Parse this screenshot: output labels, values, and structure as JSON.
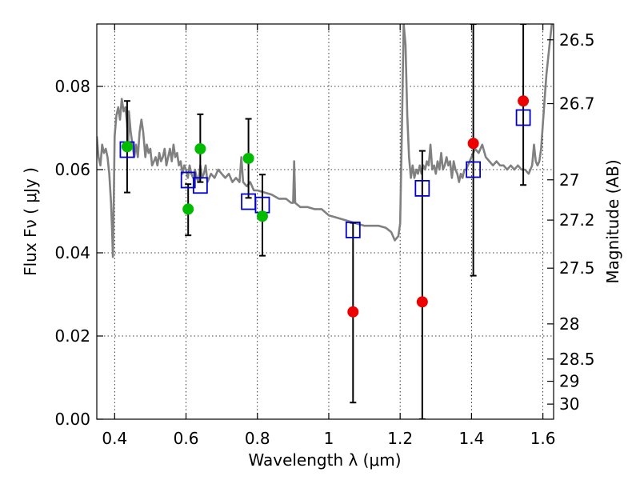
{
  "chart_data": {
    "type": "scatter",
    "xlabel": "Wavelength  λ (μm)",
    "ylabel": "Flux  Fν  ( μJy )",
    "ylabel_right": "Magnitude (AB)",
    "xlim": [
      0.35,
      1.63
    ],
    "ylim": [
      0.0,
      0.095
    ],
    "grid": true,
    "x_ticks": [
      {
        "value": 0.4,
        "label": "0.4"
      },
      {
        "value": 0.6,
        "label": "0.6"
      },
      {
        "value": 0.8,
        "label": "0.8"
      },
      {
        "value": 1.0,
        "label": "1"
      },
      {
        "value": 1.2,
        "label": "1.2"
      },
      {
        "value": 1.4,
        "label": "1.4"
      },
      {
        "value": 1.6,
        "label": "1.6"
      }
    ],
    "y_ticks": [
      {
        "value": 0.0,
        "label": "0.00"
      },
      {
        "value": 0.02,
        "label": "0.02"
      },
      {
        "value": 0.04,
        "label": "0.04"
      },
      {
        "value": 0.06,
        "label": "0.06"
      },
      {
        "value": 0.08,
        "label": "0.08"
      }
    ],
    "mag_ticks": [
      {
        "mag": 26.5,
        "label": "26.5"
      },
      {
        "mag": 26.7,
        "label": "26.7"
      },
      {
        "mag": 27.0,
        "label": "27"
      },
      {
        "mag": 27.2,
        "label": "27.2"
      },
      {
        "mag": 27.5,
        "label": "27.5"
      },
      {
        "mag": 28.0,
        "label": "28"
      },
      {
        "mag": 28.5,
        "label": "28.5"
      },
      {
        "mag": 29.0,
        "label": "29"
      },
      {
        "mag": 30.0,
        "label": "30"
      }
    ],
    "series": [
      {
        "kind": "model-spectrum",
        "color": "#808080",
        "points": [
          [
            0.35,
            0.068
          ],
          [
            0.355,
            0.063
          ],
          [
            0.36,
            0.061
          ],
          [
            0.365,
            0.066
          ],
          [
            0.37,
            0.064
          ],
          [
            0.375,
            0.065
          ],
          [
            0.38,
            0.063
          ],
          [
            0.385,
            0.059
          ],
          [
            0.39,
            0.052
          ],
          [
            0.393,
            0.045
          ],
          [
            0.395,
            0.039
          ],
          [
            0.398,
            0.055
          ],
          [
            0.4,
            0.068
          ],
          [
            0.405,
            0.073
          ],
          [
            0.41,
            0.075
          ],
          [
            0.415,
            0.072
          ],
          [
            0.42,
            0.077
          ],
          [
            0.425,
            0.074
          ],
          [
            0.43,
            0.075
          ],
          [
            0.435,
            0.071
          ],
          [
            0.438,
            0.066
          ],
          [
            0.44,
            0.074
          ],
          [
            0.445,
            0.069
          ],
          [
            0.45,
            0.066
          ],
          [
            0.455,
            0.063
          ],
          [
            0.46,
            0.066
          ],
          [
            0.465,
            0.063
          ],
          [
            0.47,
            0.069
          ],
          [
            0.475,
            0.072
          ],
          [
            0.48,
            0.069
          ],
          [
            0.486,
            0.063
          ],
          [
            0.49,
            0.066
          ],
          [
            0.495,
            0.064
          ],
          [
            0.5,
            0.065
          ],
          [
            0.505,
            0.061
          ],
          [
            0.51,
            0.062
          ],
          [
            0.515,
            0.063
          ],
          [
            0.52,
            0.061
          ],
          [
            0.525,
            0.064
          ],
          [
            0.53,
            0.062
          ],
          [
            0.535,
            0.063
          ],
          [
            0.54,
            0.065
          ],
          [
            0.545,
            0.061
          ],
          [
            0.55,
            0.063
          ],
          [
            0.555,
            0.065
          ],
          [
            0.56,
            0.062
          ],
          [
            0.565,
            0.066
          ],
          [
            0.57,
            0.063
          ],
          [
            0.575,
            0.064
          ],
          [
            0.58,
            0.061
          ],
          [
            0.585,
            0.062
          ],
          [
            0.59,
            0.059
          ],
          [
            0.595,
            0.061
          ],
          [
            0.6,
            0.06
          ],
          [
            0.605,
            0.058
          ],
          [
            0.61,
            0.061
          ],
          [
            0.615,
            0.059
          ],
          [
            0.62,
            0.058
          ],
          [
            0.625,
            0.06
          ],
          [
            0.63,
            0.058
          ],
          [
            0.635,
            0.057
          ],
          [
            0.64,
            0.061
          ],
          [
            0.645,
            0.058
          ],
          [
            0.65,
            0.059
          ],
          [
            0.655,
            0.061
          ],
          [
            0.66,
            0.057
          ],
          [
            0.665,
            0.058
          ],
          [
            0.67,
            0.059
          ],
          [
            0.68,
            0.058
          ],
          [
            0.69,
            0.06
          ],
          [
            0.7,
            0.059
          ],
          [
            0.71,
            0.058
          ],
          [
            0.72,
            0.059
          ],
          [
            0.73,
            0.057
          ],
          [
            0.74,
            0.058
          ],
          [
            0.75,
            0.057
          ],
          [
            0.755,
            0.063
          ],
          [
            0.76,
            0.057
          ],
          [
            0.77,
            0.056
          ],
          [
            0.78,
            0.057
          ],
          [
            0.79,
            0.055
          ],
          [
            0.8,
            0.055
          ],
          [
            0.82,
            0.0545
          ],
          [
            0.84,
            0.054
          ],
          [
            0.86,
            0.053
          ],
          [
            0.88,
            0.053
          ],
          [
            0.895,
            0.052
          ],
          [
            0.9,
            0.052
          ],
          [
            0.903,
            0.062
          ],
          [
            0.906,
            0.052
          ],
          [
            0.92,
            0.051
          ],
          [
            0.94,
            0.051
          ],
          [
            0.96,
            0.0505
          ],
          [
            0.98,
            0.0505
          ],
          [
            1.0,
            0.049
          ],
          [
            1.02,
            0.0485
          ],
          [
            1.04,
            0.048
          ],
          [
            1.06,
            0.0475
          ],
          [
            1.08,
            0.047
          ],
          [
            1.1,
            0.0465
          ],
          [
            1.12,
            0.0465
          ],
          [
            1.14,
            0.0465
          ],
          [
            1.16,
            0.046
          ],
          [
            1.175,
            0.045
          ],
          [
            1.185,
            0.043
          ],
          [
            1.195,
            0.044
          ],
          [
            1.2,
            0.047
          ],
          [
            1.205,
            0.07
          ],
          [
            1.21,
            0.095
          ],
          [
            1.215,
            0.09
          ],
          [
            1.22,
            0.073
          ],
          [
            1.225,
            0.063
          ],
          [
            1.23,
            0.058
          ],
          [
            1.235,
            0.061
          ],
          [
            1.24,
            0.058
          ],
          [
            1.245,
            0.06
          ],
          [
            1.25,
            0.059
          ],
          [
            1.255,
            0.061
          ],
          [
            1.26,
            0.059
          ],
          [
            1.265,
            0.061
          ],
          [
            1.27,
            0.06
          ],
          [
            1.275,
            0.062
          ],
          [
            1.28,
            0.061
          ],
          [
            1.285,
            0.066
          ],
          [
            1.29,
            0.06
          ],
          [
            1.295,
            0.061
          ],
          [
            1.3,
            0.059
          ],
          [
            1.305,
            0.062
          ],
          [
            1.31,
            0.06
          ],
          [
            1.315,
            0.064
          ],
          [
            1.32,
            0.06
          ],
          [
            1.325,
            0.061
          ],
          [
            1.33,
            0.063
          ],
          [
            1.335,
            0.061
          ],
          [
            1.34,
            0.062
          ],
          [
            1.345,
            0.058
          ],
          [
            1.35,
            0.062
          ],
          [
            1.355,
            0.06
          ],
          [
            1.36,
            0.059
          ],
          [
            1.365,
            0.057
          ],
          [
            1.37,
            0.059
          ],
          [
            1.375,
            0.058
          ],
          [
            1.38,
            0.06
          ],
          [
            1.385,
            0.06
          ],
          [
            1.39,
            0.061
          ],
          [
            1.4,
            0.063
          ],
          [
            1.41,
            0.065
          ],
          [
            1.42,
            0.064
          ],
          [
            1.43,
            0.066
          ],
          [
            1.44,
            0.063
          ],
          [
            1.45,
            0.062
          ],
          [
            1.46,
            0.061
          ],
          [
            1.47,
            0.062
          ],
          [
            1.48,
            0.061
          ],
          [
            1.49,
            0.061
          ],
          [
            1.5,
            0.06
          ],
          [
            1.51,
            0.061
          ],
          [
            1.52,
            0.06
          ],
          [
            1.53,
            0.061
          ],
          [
            1.54,
            0.06
          ],
          [
            1.55,
            0.06
          ],
          [
            1.56,
            0.059
          ],
          [
            1.57,
            0.061
          ],
          [
            1.575,
            0.066
          ],
          [
            1.58,
            0.062
          ],
          [
            1.585,
            0.061
          ],
          [
            1.59,
            0.062
          ],
          [
            1.595,
            0.065
          ],
          [
            1.6,
            0.071
          ],
          [
            1.605,
            0.077
          ],
          [
            1.61,
            0.083
          ],
          [
            1.615,
            0.087
          ],
          [
            1.62,
            0.091
          ],
          [
            1.625,
            0.095
          ]
        ]
      },
      {
        "kind": "model-photometry",
        "marker": "square",
        "color": "#0000cc",
        "points": [
          {
            "x": 0.435,
            "y": 0.0648
          },
          {
            "x": 0.606,
            "y": 0.0575
          },
          {
            "x": 0.64,
            "y": 0.0562
          },
          {
            "x": 0.775,
            "y": 0.0523
          },
          {
            "x": 0.814,
            "y": 0.0515
          },
          {
            "x": 1.068,
            "y": 0.0455
          },
          {
            "x": 1.262,
            "y": 0.0555
          },
          {
            "x": 1.405,
            "y": 0.06
          },
          {
            "x": 1.545,
            "y": 0.0725
          }
        ]
      },
      {
        "kind": "detections",
        "marker": "circle",
        "color": "#00bb00",
        "points": [
          {
            "x": 0.435,
            "y": 0.0655,
            "err_lo": 0.0545,
            "err_hi": 0.0765
          },
          {
            "x": 0.606,
            "y": 0.0505,
            "err_lo": 0.0442,
            "err_hi": 0.0565
          },
          {
            "x": 0.64,
            "y": 0.065,
            "err_lo": 0.057,
            "err_hi": 0.0733
          },
          {
            "x": 0.775,
            "y": 0.0627,
            "err_lo": 0.0532,
            "err_hi": 0.0722
          },
          {
            "x": 0.814,
            "y": 0.0488,
            "err_lo": 0.0393,
            "err_hi": 0.0588
          }
        ]
      },
      {
        "kind": "non-detections",
        "marker": "circle",
        "color": "#ee0000",
        "points": [
          {
            "x": 1.068,
            "y": 0.0258,
            "err_lo": 0.004,
            "err_hi": 0.0472
          },
          {
            "x": 1.262,
            "y": 0.0282,
            "err_lo": 0.0,
            "err_hi": 0.0645
          },
          {
            "x": 1.405,
            "y": 0.0663,
            "err_lo": 0.0345,
            "err_hi": 0.095
          },
          {
            "x": 1.545,
            "y": 0.0765,
            "err_lo": 0.0563,
            "err_hi": 0.095
          }
        ]
      }
    ]
  }
}
